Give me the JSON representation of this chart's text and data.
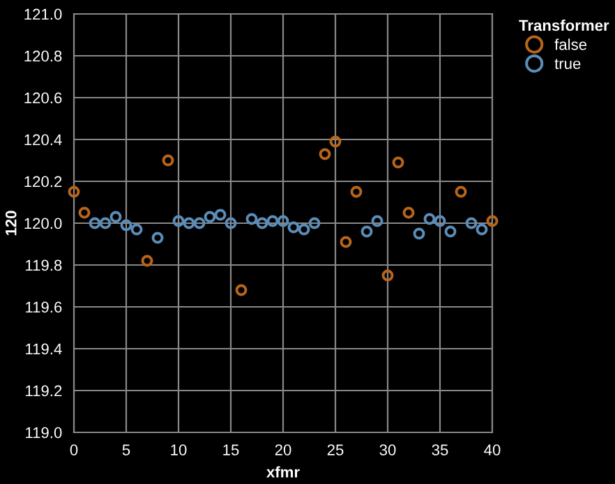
{
  "chart_data": {
    "type": "scatter",
    "xlabel": "xfmr",
    "ylabel": "120",
    "legend_title": "Transformer",
    "legend": "top right",
    "grid": true,
    "marker": "circle",
    "xlim": [
      0,
      40
    ],
    "xticks": [
      0,
      5,
      10,
      15,
      20,
      25,
      30,
      35,
      40
    ],
    "ylim": [
      119,
      121
    ],
    "yticks": [
      {
        "value": 119,
        "label": "119.0"
      },
      {
        "value": 119.2,
        "label": "119.2"
      },
      {
        "value": 119.4,
        "label": "119.4"
      },
      {
        "value": 119.6,
        "label": "119.6"
      },
      {
        "value": 119.8,
        "label": "119.8"
      },
      {
        "value": 120,
        "label": "120.0"
      },
      {
        "value": 120.2,
        "label": "120.2"
      },
      {
        "value": 120.4,
        "label": "120.4"
      },
      {
        "value": 120.6,
        "label": "120.6"
      },
      {
        "value": 120.8,
        "label": "120.8"
      },
      {
        "value": 121,
        "label": "121.0"
      }
    ],
    "series": [
      {
        "name": "false",
        "color": "#b8651b",
        "x": [
          0,
          1,
          7,
          9,
          16,
          24,
          25,
          26,
          27,
          30,
          31,
          32,
          37,
          40
        ],
        "values": [
          120.15,
          120.05,
          119.82,
          120.3,
          119.68,
          120.33,
          120.39,
          119.91,
          120.15,
          119.75,
          120.29,
          120.05,
          120.15,
          120.01
        ]
      },
      {
        "name": "true",
        "color": "#5b8db8",
        "x": [
          2,
          3,
          4,
          5,
          6,
          8,
          10,
          11,
          12,
          13,
          14,
          15,
          17,
          18,
          19,
          20,
          21,
          22,
          23,
          28,
          29,
          33,
          34,
          35,
          36,
          38,
          39
        ],
        "values": [
          120.0,
          120.0,
          120.03,
          119.99,
          119.97,
          119.93,
          120.01,
          120.0,
          120.0,
          120.03,
          120.04,
          120.0,
          120.02,
          120.0,
          120.01,
          120.01,
          119.98,
          119.97,
          120.0,
          119.96,
          120.01,
          119.95,
          120.02,
          120.01,
          119.96,
          120.0,
          119.97
        ]
      }
    ]
  }
}
